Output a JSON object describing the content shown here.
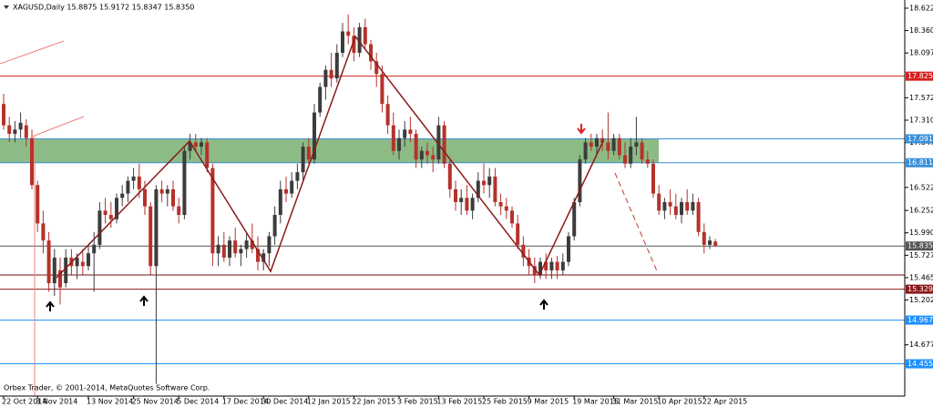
{
  "chart_data": {
    "type": "candlestick",
    "title": "XAGUSD,Daily  15.8875 15.9172 15.8347 15.8350",
    "footer": "Orbex Trader, © 2001-2014, MetaQuotes Software Corp.",
    "bull_color": "#3c3c3c",
    "bear_color": "#b5322a",
    "ylim": [
      14.077,
      18.7185
    ],
    "yticks": [
      18.6225,
      {
        "value": 18.36,
        "label": "18.3600"
      },
      18.0975,
      17.5725,
      {
        "value": 17.31,
        "label": "17.3100"
      },
      17.0475,
      16.5225,
      16.2525,
      {
        "value": 15.99,
        "label": "15.9900"
      },
      15.7275,
      {
        "value": 15.465,
        "label": "15.4650"
      },
      15.2025,
      14.6775
    ],
    "levels": [
      {
        "value": 17.8258,
        "color": "#d62020"
      },
      {
        "value": 17.0916,
        "color": "#3a8fd8",
        "zone": true
      },
      {
        "value": 16.8113,
        "color": "#3a8fd8",
        "zone": true
      },
      {
        "value": 15.835,
        "label": "15.8350",
        "color": "#555555"
      },
      {
        "value": 15.496,
        "color": "#7a0f0f",
        "show_label": false
      },
      {
        "value": 15.3295,
        "color": "#8b1a1a"
      },
      {
        "value": 14.9671,
        "color": "#1e90ff"
      },
      {
        "value": 14.4554,
        "color": "#1e90ff"
      }
    ],
    "zone_color": "#8dbb85",
    "categories": [
      "22 Oct 2014",
      null,
      null,
      null,
      null,
      null,
      "3 Nov 2014",
      null,
      null,
      null,
      null,
      null,
      null,
      null,
      null,
      "13 Nov 2014",
      null,
      null,
      null,
      null,
      null,
      null,
      null,
      "25 Nov 2014",
      null,
      null,
      null,
      null,
      null,
      null,
      null,
      "5 Dec 2014",
      null,
      null,
      null,
      null,
      null,
      null,
      null,
      "17 Dec 2014",
      null,
      null,
      null,
      null,
      null,
      null,
      "30 Dec 2014",
      null,
      null,
      null,
      null,
      null,
      null,
      null,
      "12 Jan 2015",
      null,
      null,
      null,
      null,
      null,
      null,
      null,
      "22 Jan 2015",
      null,
      null,
      null,
      null,
      null,
      null,
      null,
      "3 Feb 2015",
      null,
      null,
      null,
      null,
      null,
      null,
      "13 Feb 2015",
      null,
      null,
      null,
      null,
      null,
      null,
      null,
      "25 Feb 2015",
      null,
      null,
      null,
      null,
      null,
      null,
      null,
      "9 Mar 2015",
      null,
      null,
      null,
      null,
      null,
      null,
      null,
      "19 Mar 2015",
      null,
      null,
      null,
      null,
      null,
      null,
      "31 Mar 2015",
      null,
      null,
      null,
      null,
      null,
      null,
      null,
      "10 Apr 2015",
      null,
      null,
      null,
      null,
      null,
      null,
      null,
      "22 Apr 2015",
      null,
      null
    ],
    "open": [
      17.5,
      17.25,
      17.15,
      17.2,
      17.25,
      17.1,
      16.55,
      16.1,
      15.9,
      15.4,
      15.55,
      15.4,
      15.7,
      15.6,
      15.65,
      15.6,
      15.75,
      15.85,
      16.25,
      16.2,
      16.15,
      16.4,
      16.45,
      16.6,
      16.65,
      16.5,
      16.3,
      15.6,
      16.5,
      16.45,
      16.5,
      16.3,
      16.2,
      16.95,
      17.05,
      17.0,
      17.05,
      16.75,
      15.75,
      15.85,
      15.7,
      15.9,
      15.75,
      15.8,
      15.9,
      15.8,
      15.65,
      15.75,
      15.95,
      16.2,
      16.5,
      16.45,
      16.6,
      16.7,
      17.0,
      16.85,
      17.4,
      17.7,
      17.9,
      17.8,
      18.1,
      18.35,
      18.3,
      18.1,
      18.4,
      18.2,
      18.0,
      17.85,
      17.5,
      17.25,
      16.95,
      17.1,
      17.2,
      17.15,
      16.85,
      16.95,
      16.9,
      16.85,
      17.25,
      16.8,
      16.5,
      16.35,
      16.4,
      16.25,
      16.4,
      16.6,
      16.55,
      16.65,
      16.35,
      16.3,
      16.25,
      16.1,
      15.85,
      15.7,
      15.6,
      15.5,
      15.65,
      15.55,
      15.65,
      15.55,
      15.65,
      15.95,
      16.35,
      16.85,
      17.05,
      17.0,
      17.1,
      17.05,
      16.95,
      17.1,
      16.9,
      16.8,
      17.0,
      17.05,
      16.85,
      16.8,
      16.45,
      16.25,
      16.35,
      16.3,
      16.2,
      16.35,
      16.25,
      16.35,
      16.0,
      15.85,
      15.8875
    ],
    "high": [
      17.62,
      17.35,
      17.3,
      17.4,
      17.32,
      17.2,
      16.6,
      16.25,
      16.0,
      15.8,
      15.7,
      15.8,
      15.8,
      15.75,
      15.8,
      15.85,
      16.0,
      16.35,
      16.4,
      16.35,
      16.45,
      16.55,
      16.65,
      16.75,
      16.8,
      16.6,
      16.35,
      16.55,
      16.6,
      16.55,
      16.6,
      16.4,
      17.0,
      17.15,
      17.15,
      17.1,
      17.1,
      16.8,
      15.95,
      16.0,
      15.95,
      16.05,
      15.85,
      16.0,
      16.1,
      15.95,
      15.8,
      16.0,
      16.3,
      16.6,
      16.65,
      16.7,
      16.8,
      17.05,
      17.1,
      17.5,
      17.75,
      17.95,
      18.1,
      18.2,
      18.45,
      18.55,
      18.4,
      18.45,
      18.5,
      18.25,
      18.1,
      17.95,
      17.6,
      17.4,
      17.2,
      17.3,
      17.35,
      17.2,
      17.0,
      17.05,
      17.0,
      17.35,
      17.3,
      16.85,
      16.6,
      16.5,
      16.55,
      16.45,
      16.7,
      16.8,
      16.75,
      16.75,
      16.45,
      16.4,
      16.3,
      16.2,
      15.95,
      15.8,
      15.7,
      15.7,
      15.75,
      15.7,
      15.72,
      15.75,
      16.0,
      16.4,
      16.9,
      17.1,
      17.15,
      17.15,
      17.2,
      17.4,
      17.15,
      17.15,
      17.05,
      17.1,
      17.35,
      17.1,
      16.95,
      16.85,
      16.55,
      16.4,
      16.5,
      16.45,
      16.4,
      16.5,
      16.45,
      16.4,
      16.1,
      15.95,
      15.9172
    ],
    "low": [
      17.2,
      17.05,
      17.05,
      17.1,
      17.0,
      16.5,
      16.0,
      15.75,
      15.3,
      15.25,
      15.15,
      15.35,
      15.5,
      15.45,
      15.5,
      15.55,
      15.3,
      15.8,
      16.1,
      16.05,
      16.1,
      16.3,
      16.35,
      16.5,
      16.4,
      16.2,
      15.5,
      14.22,
      16.35,
      16.3,
      16.25,
      16.1,
      16.15,
      16.85,
      16.95,
      16.9,
      16.7,
      15.6,
      15.6,
      15.65,
      15.6,
      15.7,
      15.6,
      15.7,
      15.75,
      15.55,
      15.55,
      15.6,
      15.85,
      16.1,
      16.35,
      16.4,
      16.5,
      16.6,
      16.8,
      16.8,
      17.35,
      17.55,
      17.7,
      17.75,
      18.05,
      18.2,
      18.0,
      18.05,
      18.15,
      17.9,
      17.7,
      17.4,
      17.15,
      16.9,
      16.85,
      17.0,
      17.05,
      16.75,
      16.75,
      16.8,
      16.7,
      16.8,
      16.75,
      16.4,
      16.25,
      16.2,
      16.2,
      16.15,
      16.35,
      16.45,
      16.4,
      16.3,
      16.2,
      16.15,
      16.05,
      15.8,
      15.6,
      15.5,
      15.4,
      15.45,
      15.45,
      15.45,
      15.45,
      15.5,
      15.6,
      15.9,
      16.3,
      16.8,
      16.95,
      16.9,
      16.95,
      16.85,
      16.9,
      16.85,
      16.75,
      16.75,
      16.9,
      16.8,
      16.75,
      16.4,
      16.2,
      16.15,
      16.2,
      16.15,
      16.1,
      16.2,
      16.2,
      15.95,
      15.75,
      15.8,
      15.8347
    ],
    "close": [
      17.25,
      17.15,
      17.2,
      17.28,
      17.1,
      16.55,
      16.1,
      15.9,
      15.4,
      15.7,
      15.35,
      15.7,
      15.6,
      15.7,
      15.6,
      15.75,
      15.85,
      16.25,
      16.2,
      16.15,
      16.4,
      16.45,
      16.6,
      16.65,
      16.5,
      16.3,
      15.6,
      16.5,
      16.45,
      16.5,
      16.3,
      16.2,
      16.95,
      17.05,
      17.0,
      17.05,
      16.75,
      15.75,
      15.85,
      15.7,
      15.9,
      15.75,
      15.8,
      15.9,
      15.8,
      15.65,
      15.75,
      15.95,
      16.2,
      16.5,
      16.45,
      16.6,
      16.7,
      17.0,
      16.85,
      17.4,
      17.7,
      17.9,
      17.8,
      18.1,
      18.35,
      18.3,
      18.1,
      18.4,
      18.2,
      18.0,
      17.85,
      17.5,
      17.25,
      16.95,
      17.1,
      17.2,
      17.15,
      16.85,
      16.95,
      16.9,
      16.85,
      17.25,
      16.8,
      16.5,
      16.35,
      16.4,
      16.25,
      16.4,
      16.6,
      16.55,
      16.65,
      16.35,
      16.3,
      16.25,
      16.1,
      15.85,
      15.7,
      15.6,
      15.5,
      15.65,
      15.55,
      15.65,
      15.55,
      15.65,
      15.95,
      16.35,
      16.85,
      17.05,
      17.0,
      17.1,
      17.05,
      16.95,
      17.1,
      16.9,
      16.8,
      17.0,
      17.05,
      16.85,
      16.8,
      16.45,
      16.25,
      16.35,
      16.3,
      16.2,
      16.35,
      16.25,
      16.35,
      16.0,
      15.85,
      15.9,
      15.835
    ]
  }
}
